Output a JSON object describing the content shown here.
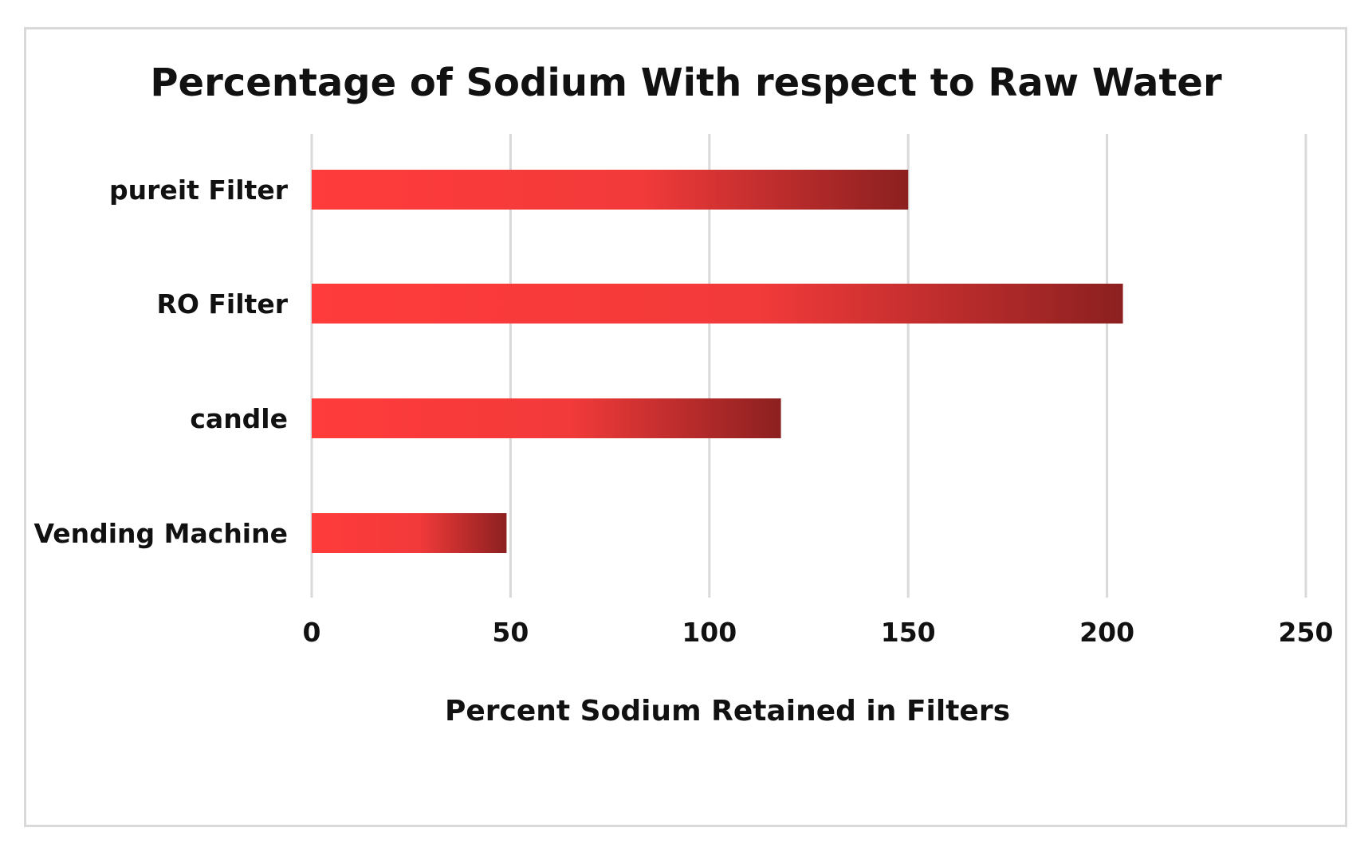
{
  "chart_data": {
    "type": "bar",
    "orientation": "horizontal",
    "title": "Percentage of Sodium With respect to Raw Water",
    "xlabel": "Percent Sodium Retained in Filters",
    "ylabel": "",
    "categories": [
      "pureit Filter",
      "RO Filter",
      "candle",
      "Vending Machine"
    ],
    "values": [
      150,
      204,
      118,
      49
    ],
    "xlim": [
      0,
      250
    ],
    "x_ticks": [
      0,
      50,
      100,
      150,
      200,
      250
    ],
    "grid": "vertical",
    "legend": "none",
    "bar_gradient": [
      "#ff3b3b",
      "#f23a3a",
      "#8c2020"
    ]
  }
}
